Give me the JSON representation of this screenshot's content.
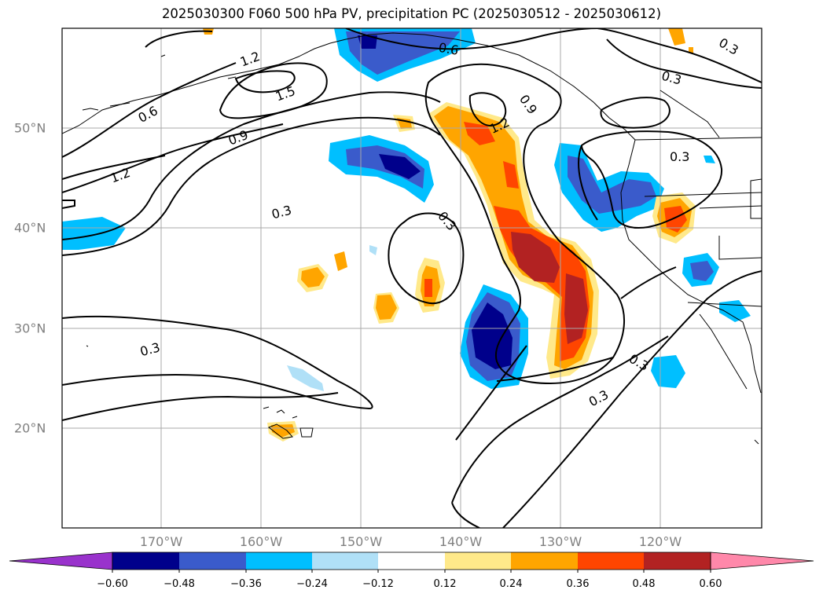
{
  "title": "2025030300 F060 500 hPa PV, precipitation PC (2025030512 - 2025030612)",
  "axes": {
    "lon_labels": [
      "170°W",
      "160°W",
      "150°W",
      "140°W",
      "130°W",
      "120°W"
    ],
    "lat_labels": [
      "50°N",
      "40°N",
      "30°N",
      "20°N"
    ]
  },
  "contour_labels": [
    "1.2",
    "1.5",
    "0.6",
    "0.6",
    "0.9",
    "1.2",
    "0.9",
    "1.2",
    "0.3",
    "0.3",
    "0.3",
    "0.3",
    "0.3",
    "0.3",
    "0.3",
    "0.3"
  ],
  "colorbar": {
    "ticks": [
      "−0.60",
      "−0.48",
      "−0.36",
      "−0.24",
      "−0.12",
      "0.12",
      "0.24",
      "0.36",
      "0.48",
      "0.60"
    ],
    "colors": [
      "#9932cc",
      "#00008b",
      "#3a5bcb",
      "#00bfff",
      "#b0e0f7",
      "#ffffff",
      "#ffe98a",
      "#ffa500",
      "#ff4500",
      "#b22222",
      "#ff88aa"
    ]
  },
  "shading_colors": {
    "neg_light": "#b0e0f7",
    "neg_mid": "#00bfff",
    "neg_strong": "#3a5bcb",
    "neg_max": "#00008b",
    "pos_light": "#ffe98a",
    "pos_mid": "#ffa500",
    "pos_strong": "#ff4500",
    "pos_max": "#b22222"
  }
}
